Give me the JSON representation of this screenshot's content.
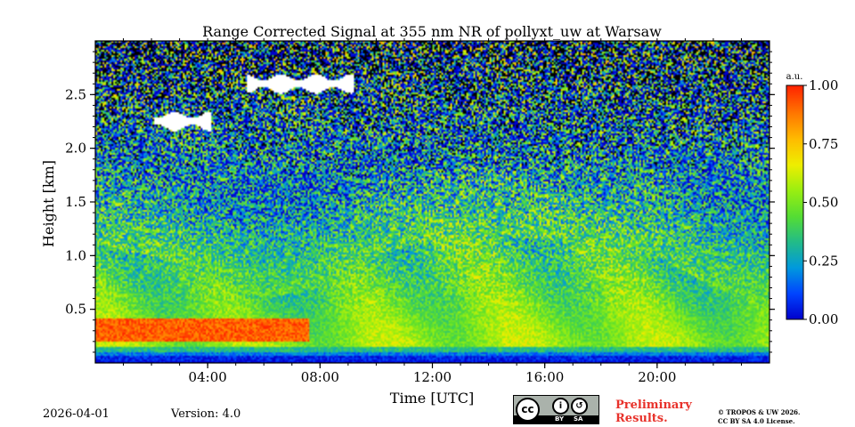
{
  "chart_data": {
    "type": "heatmap",
    "title": "Range Corrected Signal at 355 nm NR of pollyxt_uw at Warsaw",
    "xlabel": "Time [UTC]",
    "ylabel": "Height [km]",
    "x_unit": "hours UTC",
    "xlim": [
      0,
      24
    ],
    "ylim": [
      0,
      3.0
    ],
    "x_ticks": [
      {
        "value": 4,
        "label": "04:00"
      },
      {
        "value": 8,
        "label": "08:00"
      },
      {
        "value": 12,
        "label": "12:00"
      },
      {
        "value": 16,
        "label": "16:00"
      },
      {
        "value": 20,
        "label": "20:00"
      }
    ],
    "y_ticks": [
      {
        "value": 0.5,
        "label": "0.5"
      },
      {
        "value": 1.0,
        "label": "1.0"
      },
      {
        "value": 1.5,
        "label": "1.5"
      },
      {
        "value": 2.0,
        "label": "2.0"
      },
      {
        "value": 2.5,
        "label": "2.5"
      }
    ],
    "colorbar": {
      "label": "a.u.",
      "range": [
        0,
        1
      ],
      "ticks": [
        {
          "value": 0.0,
          "label": "0.00"
        },
        {
          "value": 0.25,
          "label": "0.25"
        },
        {
          "value": 0.5,
          "label": "0.50"
        },
        {
          "value": 0.75,
          "label": "0.75"
        },
        {
          "value": 1.0,
          "label": "1.00"
        }
      ],
      "colormap": [
        "#0000cc",
        "#0044ff",
        "#0099dd",
        "#22bb88",
        "#55dd33",
        "#99ee11",
        "#eeee00",
        "#ffbb00",
        "#ff7700",
        "#ff2200"
      ]
    },
    "features": {
      "surface_layer_km": [
        0.0,
        0.15
      ],
      "aerosol_layer_top_km": [
        [
          0,
          1.1
        ],
        [
          2,
          1.0
        ],
        [
          4,
          0.8
        ],
        [
          6,
          0.6
        ],
        [
          8,
          0.7
        ],
        [
          10,
          1.0
        ],
        [
          12,
          1.15
        ],
        [
          14,
          1.2
        ],
        [
          16,
          1.15
        ],
        [
          18,
          1.1
        ],
        [
          20,
          1.0
        ],
        [
          22,
          0.7
        ],
        [
          24,
          0.6
        ]
      ],
      "high_signal_layer": {
        "start_h": 0.0,
        "end_h": 7.6,
        "bottom_km": 0.2,
        "top_km": 0.42
      },
      "clouds": [
        {
          "start_h": 2.1,
          "end_h": 4.1,
          "height_km": 2.25
        },
        {
          "start_h": 5.4,
          "end_h": 9.2,
          "height_km": 2.6
        }
      ]
    }
  },
  "footer": {
    "date": "2026-04-01",
    "version": "Version: 4.0",
    "cc_label": "cc",
    "cc_by": "BY",
    "cc_sa": "SA",
    "preliminary_line1": "Preliminary",
    "preliminary_line2": "Results.",
    "license_line1": "© TROPOS & UW 2026.",
    "license_line2": "CC BY SA 4.0 License."
  }
}
